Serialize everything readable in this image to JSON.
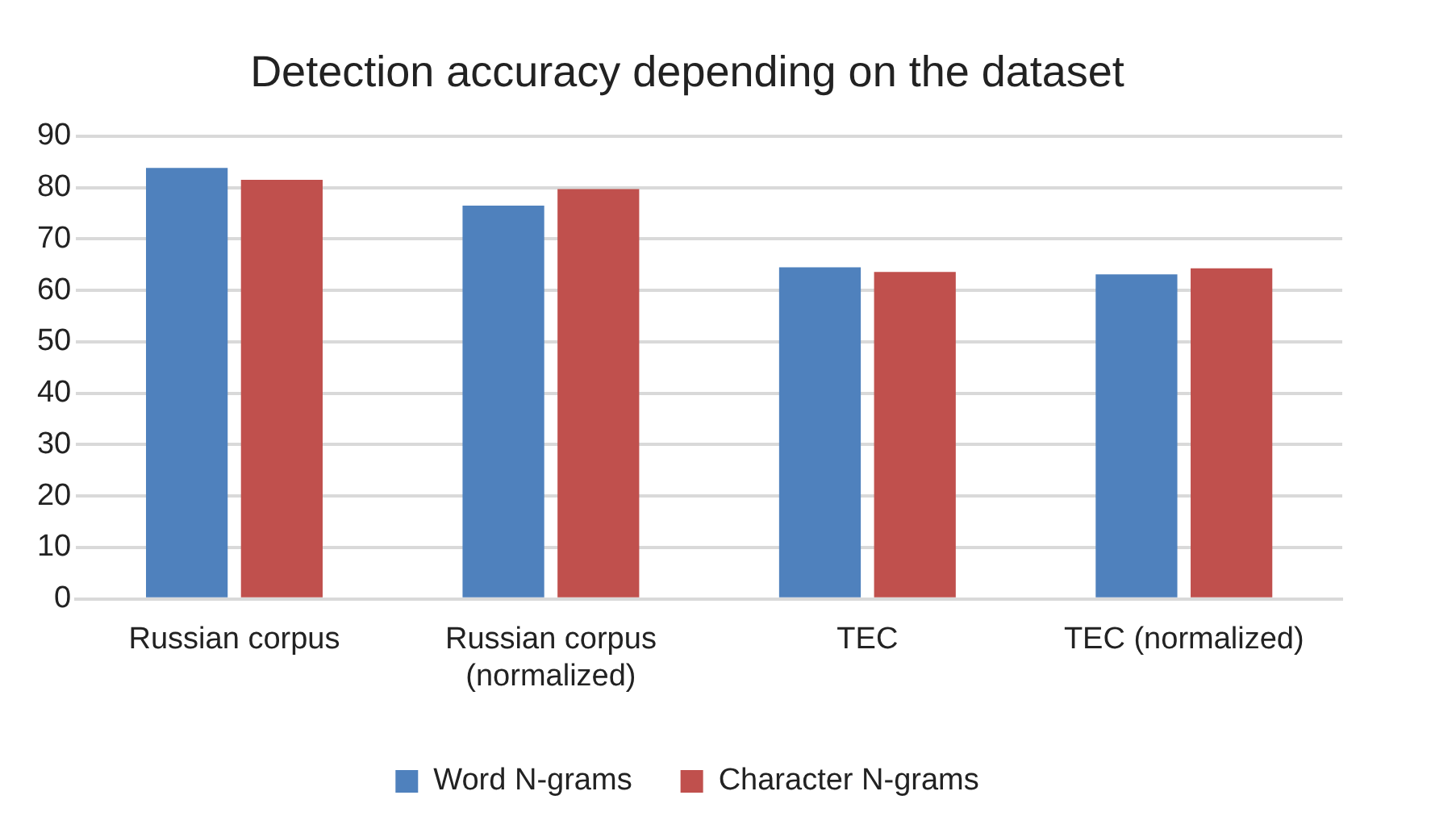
{
  "chart_data": {
    "type": "bar",
    "title": "Detection accuracy depending on the dataset",
    "categories": [
      "Russian corpus",
      "Russian corpus (normalized)",
      "TEC",
      "TEC (normalized)"
    ],
    "series": [
      {
        "name": "Word N-grams",
        "color": "#4f81bd",
        "values": [
          83.8,
          76.5,
          64.5,
          63.1
        ]
      },
      {
        "name": "Character N-grams",
        "color": "#c0504d",
        "values": [
          81.5,
          79.7,
          63.6,
          64.3
        ]
      }
    ],
    "ylim": [
      0,
      90
    ],
    "yticks": [
      0,
      10,
      20,
      30,
      40,
      50,
      60,
      70,
      80,
      90
    ],
    "grid": "y",
    "legend": "bottom"
  }
}
